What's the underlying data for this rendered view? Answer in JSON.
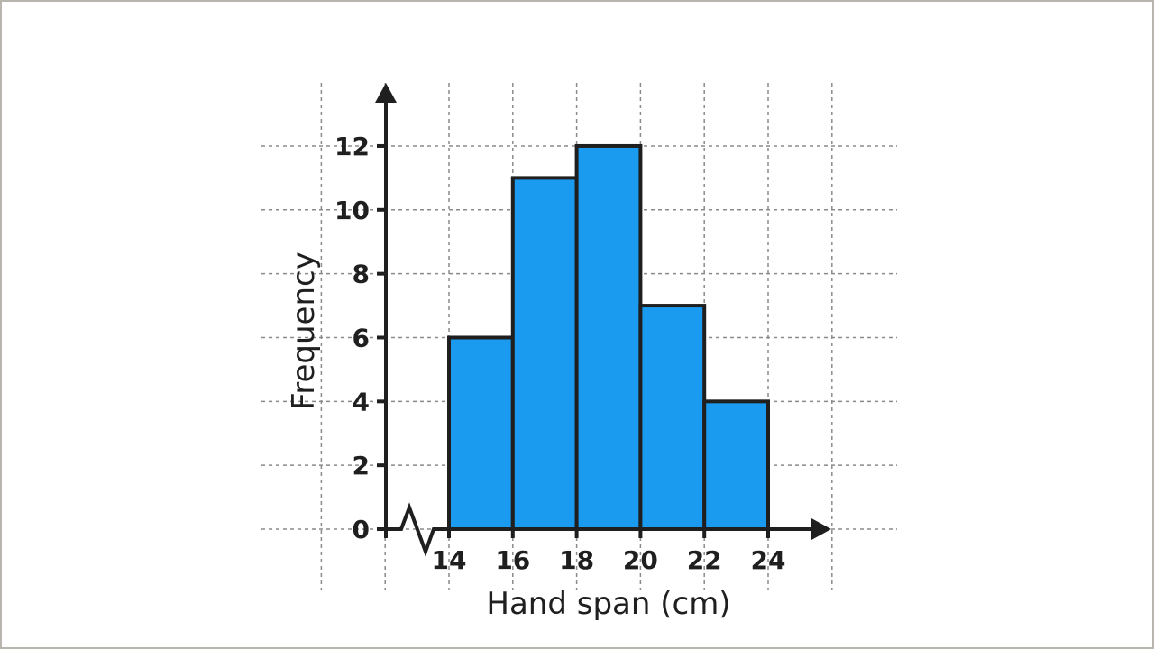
{
  "chart_data": {
    "type": "histogram",
    "title": "",
    "xlabel": "Hand span (cm)",
    "ylabel": "Frequency",
    "bins": [
      [
        14,
        16
      ],
      [
        16,
        18
      ],
      [
        18,
        20
      ],
      [
        20,
        22
      ],
      [
        22,
        24
      ]
    ],
    "values": [
      6,
      11,
      12,
      7,
      4
    ],
    "x_ticks": [
      "14",
      "16",
      "18",
      "20",
      "22",
      "24"
    ],
    "y_ticks": [
      "0",
      "2",
      "4",
      "6",
      "8",
      "10",
      "12"
    ],
    "xlim": [
      10,
      26
    ],
    "ylim": [
      0,
      13.5
    ],
    "x_axis_break": true,
    "grid": true,
    "colors": {
      "bar": "#1a9bef",
      "outline": "#1f1f1f",
      "grid": "#8a8a8a"
    }
  }
}
